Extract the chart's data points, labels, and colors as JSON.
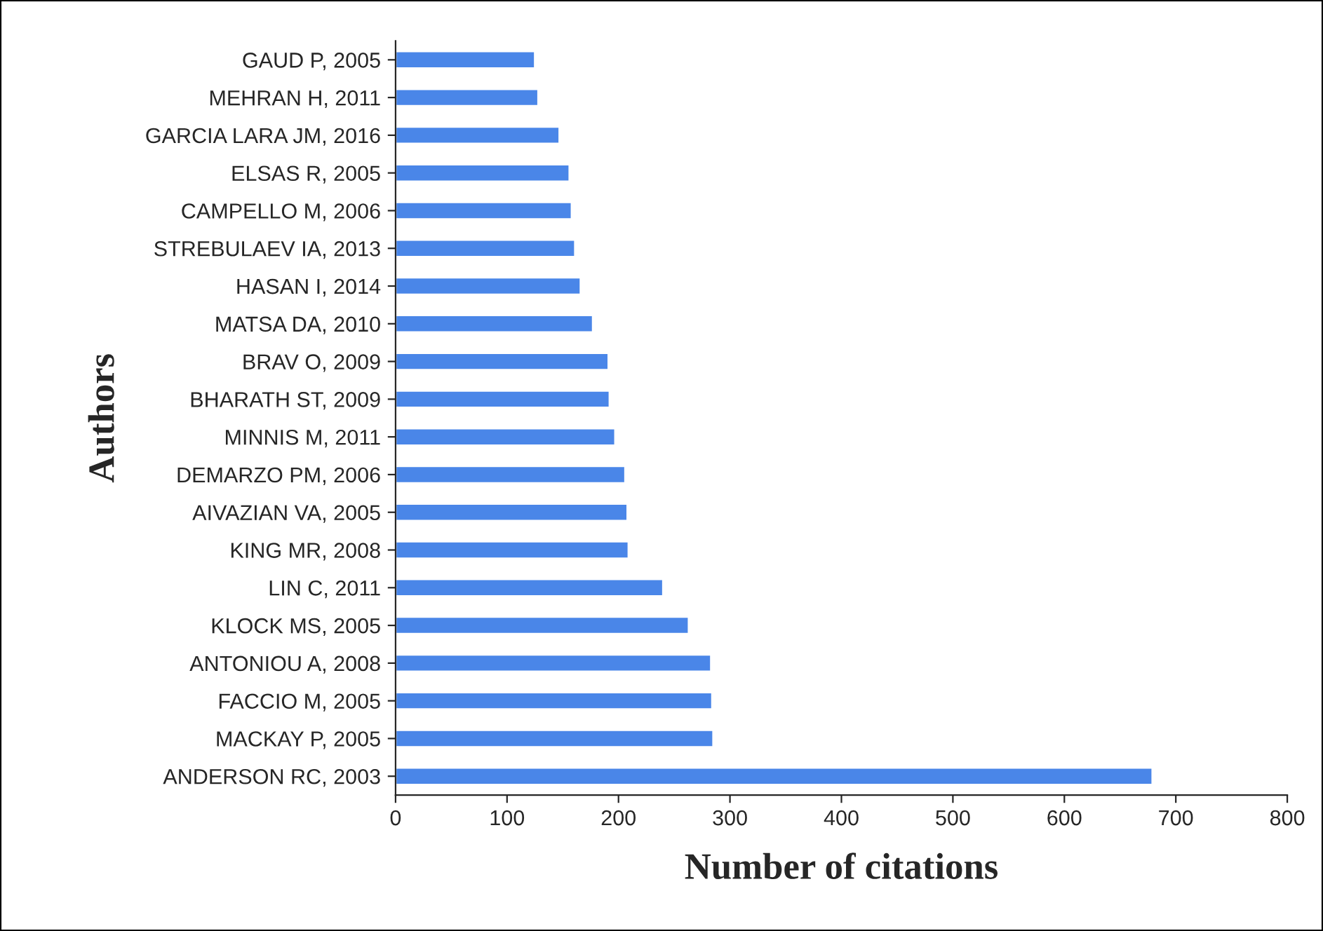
{
  "chart_data": {
    "type": "bar",
    "orientation": "horizontal",
    "xlabel": "Number of citations",
    "ylabel": "Authors",
    "categories": [
      "GAUD P, 2005",
      "MEHRAN H, 2011",
      "GARCIA LARA JM, 2016",
      "ELSAS R, 2005",
      "CAMPELLO M, 2006",
      "STREBULAEV IA, 2013",
      "HASAN I, 2014",
      "MATSA DA, 2010",
      "BRAV O, 2009",
      "BHARATH ST, 2009",
      "MINNIS M, 2011",
      "DEMARZO PM, 2006",
      "AIVAZIAN VA, 2005",
      "KING MR, 2008",
      "LIN C, 2011",
      "KLOCK MS, 2005",
      "ANTONIOU A, 2008",
      "FACCIO M, 2005",
      "MACKAY P, 2005",
      "ANDERSON RC, 2003"
    ],
    "values": [
      125,
      128,
      147,
      156,
      158,
      161,
      166,
      177,
      191,
      192,
      197,
      206,
      208,
      209,
      240,
      263,
      283,
      284,
      285,
      679
    ],
    "color": "#4a86e8",
    "xlim": [
      0,
      800
    ],
    "xticks": [
      0,
      100,
      200,
      300,
      400,
      500,
      600,
      700,
      800
    ],
    "grid": false,
    "legend": false
  }
}
